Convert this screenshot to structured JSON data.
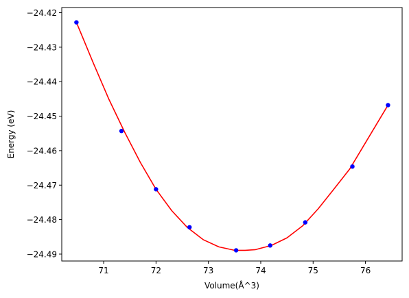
{
  "chart_data": {
    "type": "scatter",
    "title": "",
    "xlabel": "Volume(Å^3)",
    "ylabel": "Energy (eV)",
    "xlim": [
      70.2,
      76.7
    ],
    "ylim": [
      -24.492,
      -24.4185
    ],
    "xticks": [
      71,
      72,
      73,
      74,
      75,
      76
    ],
    "yticks": [
      -24.42,
      -24.43,
      -24.44,
      -24.45,
      -24.46,
      -24.47,
      -24.48,
      -24.49
    ],
    "xtick_labels": [
      "71",
      "72",
      "73",
      "74",
      "75",
      "76"
    ],
    "ytick_labels": [
      "−24.42",
      "−24.43",
      "−24.44",
      "−24.45",
      "−24.46",
      "−24.47",
      "−24.48",
      "−24.49"
    ],
    "grid": false,
    "series": [
      {
        "kind": "points",
        "color": "#0000ff",
        "x": [
          70.48,
          71.34,
          72.0,
          72.64,
          73.53,
          74.18,
          74.85,
          75.75,
          76.43
        ],
        "y": [
          -24.4228,
          -24.4543,
          -24.4712,
          -24.4822,
          -24.4889,
          -24.4875,
          -24.4808,
          -24.4646,
          -24.4468
        ]
      },
      {
        "kind": "fit-curve",
        "color": "#ff0000",
        "x": [
          70.48,
          70.8,
          71.1,
          71.4,
          71.7,
          72.0,
          72.3,
          72.6,
          72.9,
          73.2,
          73.5,
          73.7,
          73.9,
          74.2,
          74.5,
          74.8,
          75.1,
          75.4,
          75.7,
          76.0,
          76.43
        ],
        "y": [
          -24.4228,
          -24.4345,
          -24.4451,
          -24.4546,
          -24.4634,
          -24.4712,
          -24.4774,
          -24.4823,
          -24.4858,
          -24.4879,
          -24.4889,
          -24.4889,
          -24.4887,
          -24.4875,
          -24.4853,
          -24.4818,
          -24.4768,
          -24.4711,
          -24.4653,
          -24.4577,
          -24.4468
        ]
      }
    ]
  }
}
